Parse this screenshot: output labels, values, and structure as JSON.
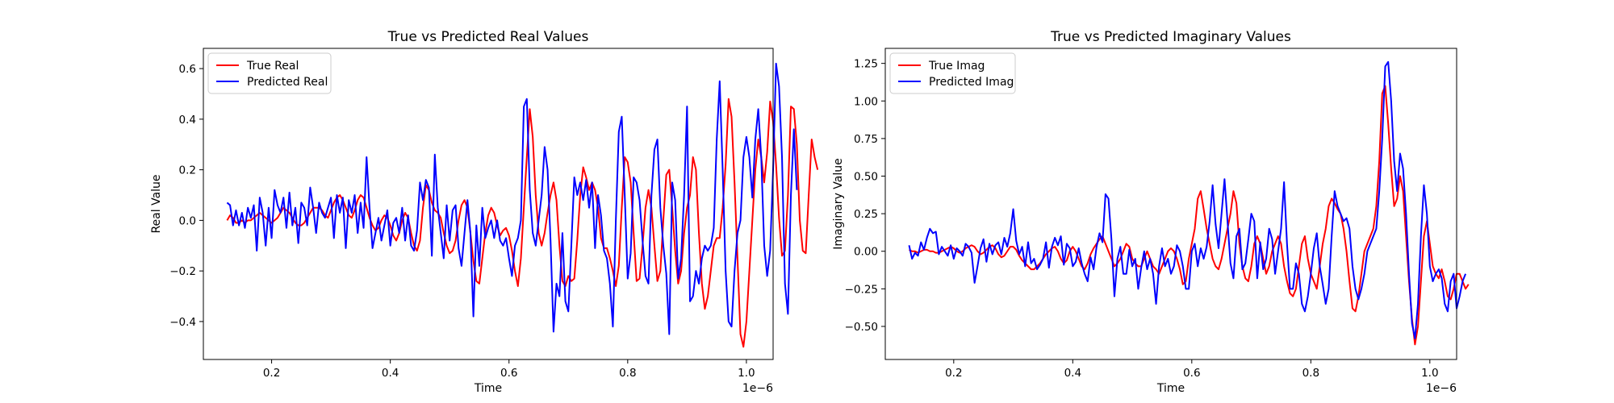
{
  "chart_data": [
    {
      "type": "line",
      "title": "True vs Predicted Real Values",
      "xlabel": "Time",
      "ylabel": "Real Value",
      "x_offset_label": "1e−6",
      "xlim": [
        0.085,
        1.045
      ],
      "ylim": [
        -0.55,
        0.68
      ],
      "xticks": [
        0.2,
        0.4,
        0.6,
        0.8,
        1.0
      ],
      "xtick_labels": [
        "0.2",
        "0.4",
        "0.6",
        "0.8",
        "1.0"
      ],
      "yticks": [
        -0.4,
        -0.2,
        0.0,
        0.2,
        0.4,
        0.6
      ],
      "ytick_labels": [
        "−0.4",
        "−0.2",
        "0.0",
        "0.2",
        "0.4",
        "0.6"
      ],
      "legend_position": "top-left",
      "x_start": 0.125,
      "x_step": 0.005,
      "series": [
        {
          "name": "True Real",
          "color": "#ff0000",
          "values": [
            0.0,
            0.02,
            0.01,
            -0.01,
            -0.01,
            0.0,
            -0.01,
            0.0,
            0.0,
            0.01,
            0.02,
            0.03,
            0.02,
            0.01,
            0.0,
            -0.01,
            0.0,
            0.01,
            0.03,
            0.05,
            0.04,
            0.03,
            0.01,
            -0.01,
            -0.02,
            -0.02,
            -0.01,
            0.01,
            0.03,
            0.05,
            0.05,
            0.05,
            0.04,
            0.02,
            0.01,
            0.04,
            0.07,
            0.09,
            0.1,
            0.08,
            0.05,
            0.02,
            0.01,
            0.04,
            0.08,
            0.1,
            0.09,
            0.05,
            0.01,
            -0.02,
            -0.04,
            -0.03,
            0.0,
            0.02,
            0.01,
            -0.02,
            -0.06,
            -0.08,
            -0.05,
            0.0,
            0.03,
            0.01,
            -0.05,
            -0.1,
            -0.12,
            -0.08,
            0.05,
            0.14,
            0.12,
            0.07,
            0.04,
            0.03,
            0.01,
            -0.05,
            -0.1,
            -0.13,
            -0.12,
            -0.08,
            0.0,
            0.06,
            0.08,
            0.05,
            -0.05,
            -0.16,
            -0.24,
            -0.25,
            -0.15,
            -0.05,
            0.02,
            0.05,
            0.03,
            -0.02,
            -0.06,
            -0.04,
            -0.03,
            -0.06,
            -0.12,
            -0.2,
            -0.26,
            -0.15,
            0.05,
            0.25,
            0.44,
            0.33,
            0.1,
            -0.05,
            -0.1,
            -0.05,
            0.03,
            0.1,
            0.15,
            0.08,
            -0.1,
            -0.24,
            -0.26,
            -0.22,
            -0.24,
            -0.23,
            -0.08,
            0.1,
            0.21,
            0.17,
            0.12,
            0.15,
            0.12,
            0.05,
            -0.07,
            -0.11,
            -0.11,
            -0.15,
            -0.2,
            -0.26,
            -0.18,
            0.05,
            0.25,
            0.23,
            0.15,
            -0.05,
            -0.24,
            -0.23,
            -0.1,
            0.05,
            0.12,
            0.05,
            -0.1,
            -0.24,
            -0.2,
            0.0,
            0.18,
            0.2,
            0.05,
            -0.12,
            -0.25,
            -0.2,
            -0.05,
            0.05,
            0.1,
            0.25,
            0.2,
            -0.05,
            -0.25,
            -0.35,
            -0.3,
            -0.2,
            -0.1,
            -0.07,
            -0.07,
            0.05,
            0.22,
            0.48,
            0.41,
            0.15,
            -0.15,
            -0.45,
            -0.5,
            -0.4,
            -0.2,
            0.0,
            0.2,
            0.32,
            0.25,
            0.15,
            0.27,
            0.47,
            0.39,
            0.22,
            0.01,
            -0.14,
            -0.12,
            0.1,
            0.45,
            0.44,
            0.3,
            0.0,
            -0.12,
            -0.13,
            0.1,
            0.32,
            0.25,
            0.2
          ]
        },
        {
          "name": "Predicted Real",
          "color": "#0000ff",
          "values": [
            0.07,
            0.06,
            -0.02,
            0.04,
            -0.02,
            0.03,
            -0.03,
            0.05,
            0.01,
            0.06,
            -0.12,
            0.09,
            0.03,
            -0.1,
            0.05,
            -0.07,
            0.12,
            0.06,
            0.03,
            0.09,
            -0.03,
            0.11,
            -0.02,
            0.05,
            -0.09,
            0.07,
            0.05,
            -0.02,
            0.13,
            0.05,
            -0.05,
            0.07,
            0.03,
            0.01,
            0.05,
            0.09,
            -0.07,
            0.1,
            0.03,
            0.09,
            -0.11,
            0.08,
            0.03,
            0.1,
            -0.05,
            0.07,
            -0.03,
            0.25,
            0.05,
            -0.11,
            -0.05,
            0.01,
            -0.08,
            -0.02,
            0.04,
            -0.1,
            -0.01,
            0.01,
            -0.05,
            0.05,
            -0.08,
            0.02,
            -0.1,
            -0.12,
            -0.04,
            0.15,
            0.08,
            0.16,
            0.13,
            -0.14,
            0.26,
            0.05,
            -0.05,
            -0.15,
            0.06,
            -0.08,
            0.04,
            0.06,
            -0.11,
            -0.18,
            -0.05,
            0.08,
            -0.05,
            -0.38,
            -0.02,
            -0.18,
            0.05,
            -0.07,
            -0.03,
            0.0,
            -0.07,
            0.0,
            -0.08,
            -0.1,
            -0.07,
            -0.15,
            -0.22,
            -0.1,
            -0.07,
            0.0,
            0.45,
            0.48,
            0.12,
            -0.05,
            -0.1,
            0.0,
            0.1,
            0.29,
            0.2,
            -0.08,
            -0.44,
            -0.25,
            -0.3,
            -0.05,
            -0.32,
            -0.36,
            -0.1,
            0.17,
            0.1,
            0.15,
            0.08,
            0.16,
            0.05,
            0.15,
            -0.11,
            0.1,
            0.02,
            -0.12,
            -0.15,
            -0.25,
            -0.42,
            0.0,
            0.35,
            0.41,
            0.1,
            -0.23,
            -0.13,
            0.17,
            0.15,
            0.08,
            -0.08,
            -0.22,
            -0.25,
            0.1,
            0.28,
            0.32,
            0.05,
            -0.1,
            -0.21,
            -0.45,
            0.15,
            0.08,
            -0.23,
            -0.15,
            0.1,
            0.45,
            -0.32,
            -0.3,
            -0.2,
            -0.25,
            -0.15,
            -0.1,
            -0.12,
            -0.1,
            -0.03,
            0.32,
            0.55,
            0.2,
            -0.2,
            -0.4,
            -0.42,
            -0.2,
            -0.05,
            0.0,
            0.25,
            0.33,
            0.25,
            0.09,
            0.32,
            0.44,
            0.25,
            -0.1,
            -0.22,
            -0.12,
            0.2,
            0.62,
            0.53,
            0.25,
            -0.25,
            -0.37,
            0.1,
            0.36,
            0.12
          ]
        }
      ]
    },
    {
      "type": "line",
      "title": "True vs Predicted Imaginary Values",
      "xlabel": "Time",
      "ylabel": "Imaginary Value",
      "x_offset_label": "1e−6",
      "xlim": [
        0.085,
        1.045
      ],
      "ylim": [
        -0.72,
        1.35
      ],
      "xticks": [
        0.2,
        0.4,
        0.6,
        0.8,
        1.0
      ],
      "xtick_labels": [
        "0.2",
        "0.4",
        "0.6",
        "0.8",
        "1.0"
      ],
      "yticks": [
        -0.5,
        -0.25,
        0.0,
        0.25,
        0.5,
        0.75,
        1.0,
        1.25
      ],
      "ytick_labels": [
        "−0.50",
        "−0.25",
        "0.00",
        "0.25",
        "0.50",
        "0.75",
        "1.00",
        "1.25"
      ],
      "legend_position": "top-left",
      "x_start": 0.125,
      "x_step": 0.005,
      "series": [
        {
          "name": "True Imag",
          "color": "#ff0000",
          "values": [
            0.01,
            0.0,
            0.0,
            -0.01,
            0.0,
            0.01,
            0.01,
            0.0,
            0.0,
            -0.01,
            -0.01,
            0.0,
            0.01,
            0.02,
            0.03,
            0.02,
            0.0,
            -0.01,
            0.0,
            0.02,
            0.03,
            0.04,
            0.03,
            0.0,
            -0.02,
            -0.01,
            0.01,
            0.03,
            0.04,
            0.02,
            -0.02,
            -0.04,
            -0.03,
            0.0,
            0.03,
            0.03,
            0.01,
            -0.03,
            -0.06,
            -0.08,
            -0.1,
            -0.12,
            -0.12,
            -0.1,
            -0.08,
            -0.05,
            -0.02,
            0.0,
            0.02,
            0.03,
            0.0,
            -0.05,
            -0.08,
            -0.06,
            0.0,
            0.03,
            0.0,
            -0.05,
            -0.1,
            -0.12,
            -0.08,
            -0.02,
            0.02,
            0.05,
            0.08,
            0.1,
            0.05,
            0.0,
            -0.05,
            -0.1,
            -0.08,
            -0.05,
            0.0,
            0.05,
            0.03,
            -0.05,
            -0.08,
            -0.1,
            -0.1,
            -0.05,
            0.0,
            -0.05,
            -0.1,
            -0.12,
            -0.15,
            -0.1,
            -0.05,
            0.0,
            0.02,
            0.0,
            -0.05,
            -0.12,
            -0.22,
            -0.2,
            -0.05,
            0.05,
            0.15,
            0.35,
            0.4,
            0.28,
            0.15,
            0.05,
            -0.05,
            -0.1,
            -0.12,
            -0.05,
            0.05,
            0.15,
            0.25,
            0.4,
            0.32,
            0.05,
            -0.1,
            -0.18,
            -0.2,
            -0.1,
            0.05,
            0.1,
            0.05,
            -0.05,
            -0.15,
            -0.1,
            0.0,
            0.05,
            0.1,
            0.05,
            -0.1,
            -0.2,
            -0.28,
            -0.3,
            -0.25,
            -0.1,
            0.05,
            0.1,
            -0.05,
            -0.15,
            -0.2,
            -0.25,
            -0.1,
            0.05,
            0.15,
            0.3,
            0.35,
            0.32,
            0.28,
            0.25,
            0.15,
            0.0,
            -0.2,
            -0.38,
            -0.4,
            -0.3,
            -0.15,
            0.0,
            0.05,
            0.1,
            0.15,
            0.3,
            0.6,
            1.05,
            1.1,
            0.85,
            0.55,
            0.3,
            0.35,
            0.5,
            0.4,
            0.1,
            -0.2,
            -0.45,
            -0.62,
            -0.5,
            -0.2,
            0.1,
            0.2,
            0.05,
            -0.1,
            -0.15,
            -0.18,
            -0.12,
            -0.2,
            -0.3,
            -0.32,
            -0.25,
            -0.15,
            -0.15,
            -0.2,
            -0.25,
            -0.22
          ]
        },
        {
          "name": "Predicted Imag",
          "color": "#0000ff",
          "values": [
            0.04,
            -0.05,
            -0.01,
            -0.03,
            0.06,
            0.01,
            0.09,
            0.15,
            0.12,
            0.13,
            -0.02,
            0.03,
            0.0,
            -0.03,
            0.04,
            -0.05,
            0.02,
            0.0,
            -0.03,
            0.05,
            0.03,
            -0.01,
            -0.21,
            -0.1,
            0.02,
            0.08,
            -0.07,
            0.05,
            -0.02,
            0.04,
            0.06,
            -0.02,
            0.09,
            0.03,
            0.12,
            0.28,
            0.07,
            -0.02,
            0.03,
            -0.1,
            0.06,
            -0.08,
            -0.05,
            -0.12,
            -0.09,
            -0.05,
            0.06,
            -0.11,
            0.03,
            0.09,
            0.04,
            0.1,
            -0.09,
            0.05,
            0.02,
            -0.1,
            -0.07,
            0.02,
            -0.08,
            -0.15,
            -0.2,
            -0.04,
            -0.12,
            0.03,
            0.12,
            0.06,
            0.38,
            0.35,
            0.08,
            -0.3,
            -0.05,
            0.03,
            -0.15,
            -0.15,
            0.01,
            -0.1,
            -0.05,
            -0.25,
            -0.11,
            0.0,
            -0.12,
            -0.05,
            -0.15,
            -0.35,
            -0.1,
            0.02,
            -0.1,
            -0.05,
            -0.15,
            -0.1,
            0.04,
            0.0,
            -0.1,
            -0.25,
            -0.25,
            0.0,
            0.05,
            -0.1,
            0.02,
            -0.05,
            0.03,
            0.2,
            0.44,
            0.18,
            0.02,
            0.25,
            0.48,
            0.2,
            -0.08,
            -0.18,
            0.1,
            0.15,
            -0.12,
            -0.08,
            0.08,
            0.25,
            0.2,
            -0.18,
            0.06,
            -0.12,
            -0.05,
            0.15,
            0.08,
            -0.15,
            0.0,
            0.15,
            0.46,
            0.05,
            -0.25,
            -0.25,
            -0.08,
            -0.15,
            -0.35,
            -0.4,
            -0.3,
            -0.15,
            0.02,
            0.12,
            -0.1,
            -0.22,
            -0.35,
            -0.25,
            0.1,
            0.4,
            0.3,
            0.25,
            0.2,
            0.22,
            0.15,
            -0.1,
            -0.25,
            -0.32,
            -0.25,
            -0.15,
            0.0,
            0.05,
            0.1,
            0.15,
            0.4,
            0.75,
            1.23,
            1.26,
            1.0,
            0.6,
            0.4,
            0.65,
            0.55,
            0.25,
            -0.15,
            -0.48,
            -0.58,
            -0.35,
            0.1,
            0.44,
            0.25,
            -0.1,
            -0.2,
            -0.15,
            -0.12,
            -0.18,
            -0.35,
            -0.4,
            -0.2,
            -0.15,
            -0.38,
            -0.3,
            -0.2,
            -0.15
          ]
        }
      ]
    }
  ]
}
